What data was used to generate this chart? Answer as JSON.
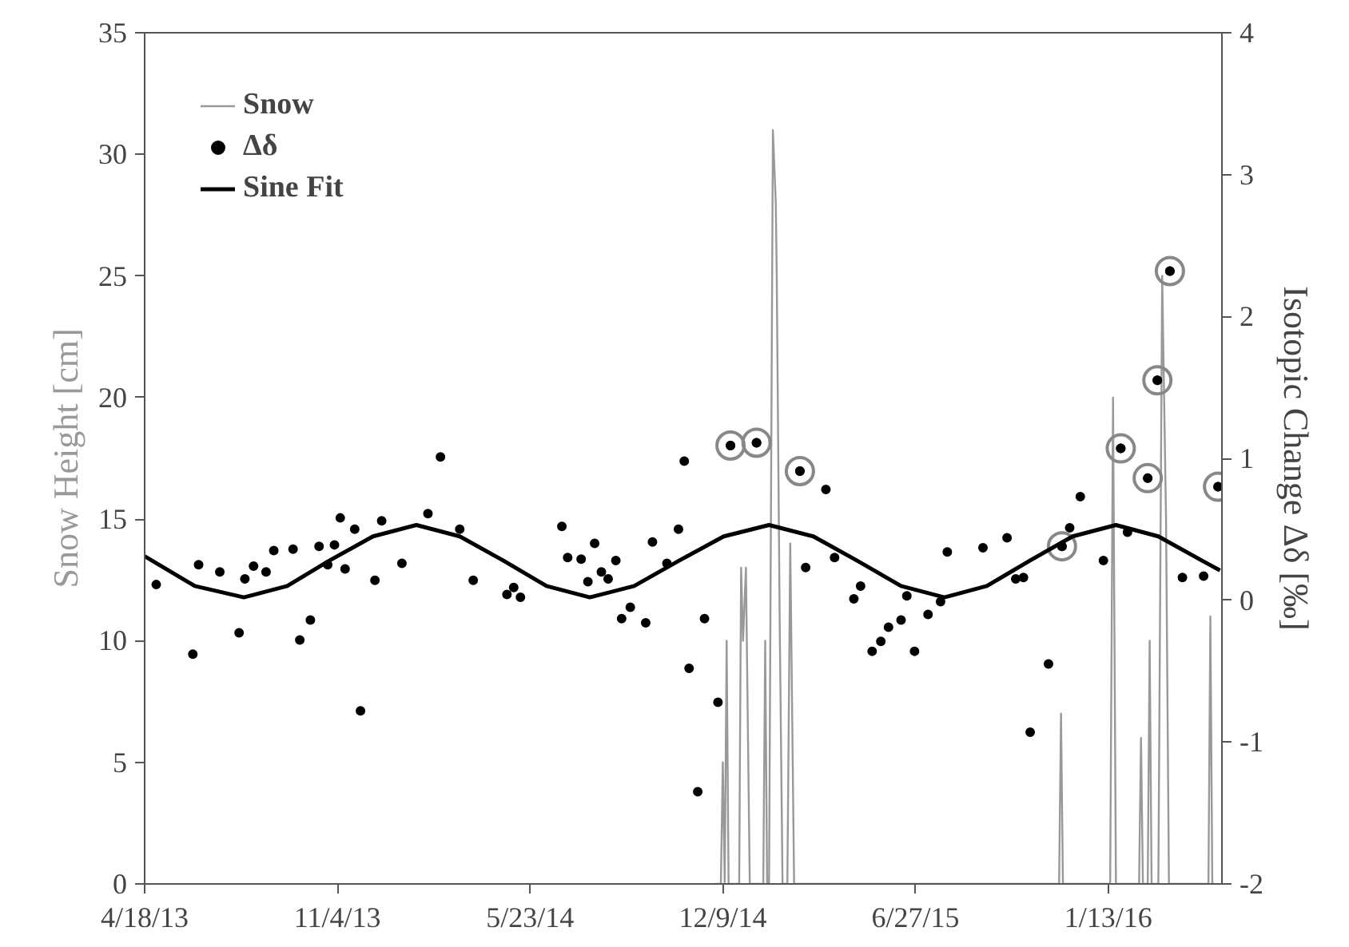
{
  "chart_data": {
    "type": "line",
    "ylabel": "Snow Height [cm]",
    "y2label": "Isotopic Change Δδ [‰]",
    "xlim": [
      "2013-04-18",
      "2016-05-10"
    ],
    "xticks": [
      {
        "value": "2013-04-18",
        "label": "4/18/13"
      },
      {
        "value": "2013-11-04",
        "label": "11/4/13"
      },
      {
        "value": "2014-05-23",
        "label": "5/23/14"
      },
      {
        "value": "2014-12-09",
        "label": "12/9/14"
      },
      {
        "value": "2015-06-27",
        "label": "6/27/15"
      },
      {
        "value": "2016-01-13",
        "label": "1/13/16"
      }
    ],
    "ylim": [
      0,
      35
    ],
    "yticks": [
      0,
      5,
      10,
      15,
      20,
      25,
      30,
      35
    ],
    "y2lim": [
      -2,
      4
    ],
    "y2ticks": [
      -2,
      -1,
      0,
      1,
      2,
      3,
      4
    ],
    "grid": false,
    "legend": "top left",
    "series": [
      {
        "name": "Snow",
        "type": "line",
        "color": "#999999",
        "x": [
          "2014-11-30",
          "2014-12-07",
          "2014-12-09",
          "2014-12-11",
          "2014-12-13",
          "2014-12-15",
          "2014-12-26",
          "2014-12-28",
          "2014-12-30",
          "2015-01-02",
          "2015-01-06",
          "2015-01-20",
          "2015-01-22",
          "2015-01-24",
          "2015-01-26",
          "2015-01-30",
          "2015-02-02",
          "2015-02-03",
          "2015-02-06",
          "2015-02-09",
          "2015-02-14",
          "2015-02-17",
          "2015-02-21",
          "2015-11-23",
          "2015-11-25",
          "2015-11-27",
          "2016-01-15",
          "2016-01-18",
          "2016-01-21",
          "2016-02-14",
          "2016-02-16",
          "2016-02-18",
          "2016-02-23",
          "2016-02-25",
          "2016-02-27",
          "2016-03-05",
          "2016-03-09",
          "2016-03-13",
          "2016-03-16",
          "2016-04-26",
          "2016-04-28",
          "2016-04-30",
          "2016-05-02"
        ],
        "values": [
          0,
          0,
          5,
          0,
          10,
          0,
          0,
          13,
          10,
          13,
          0,
          0,
          10,
          0,
          0,
          31,
          28,
          25,
          11,
          0,
          0,
          14,
          0,
          0,
          7,
          0,
          0,
          20,
          0,
          0,
          6,
          0,
          0,
          10,
          0,
          0,
          25,
          15,
          0,
          0,
          11,
          0,
          0
        ]
      },
      {
        "name": "Δδ",
        "type": "scatter",
        "axis": "y2",
        "marker": "circle",
        "color": "#000000",
        "x": [
          "2013-04-30",
          "2013-06-07",
          "2013-06-13",
          "2013-07-05",
          "2013-07-25",
          "2013-07-31",
          "2013-08-09",
          "2013-08-22",
          "2013-08-30",
          "2013-09-19",
          "2013-09-26",
          "2013-10-07",
          "2013-10-16",
          "2013-10-25",
          "2013-11-01",
          "2013-11-07",
          "2013-11-12",
          "2013-11-22",
          "2013-11-28",
          "2013-12-13",
          "2013-12-20",
          "2014-01-10",
          "2014-02-06",
          "2014-02-19",
          "2014-03-11",
          "2014-03-25",
          "2014-04-29",
          "2014-05-06",
          "2014-05-13",
          "2014-06-25",
          "2014-07-01",
          "2014-07-15",
          "2014-07-22",
          "2014-07-29",
          "2014-08-05",
          "2014-08-12",
          "2014-08-20",
          "2014-08-26",
          "2014-09-04",
          "2014-09-20",
          "2014-09-27",
          "2014-10-12",
          "2014-10-24",
          "2014-10-30",
          "2014-11-04",
          "2014-11-13",
          "2014-11-20",
          "2014-12-04",
          "2014-12-17",
          "2015-01-13",
          "2015-02-27",
          "2015-03-05",
          "2015-03-26",
          "2015-04-04",
          "2015-04-24",
          "2015-05-01",
          "2015-05-13",
          "2015-05-22",
          "2015-05-30",
          "2015-06-12",
          "2015-06-18",
          "2015-06-26",
          "2015-07-10",
          "2015-07-23",
          "2015-07-30",
          "2015-09-05",
          "2015-09-30",
          "2015-10-09",
          "2015-10-17",
          "2015-10-24",
          "2015-11-12",
          "2015-11-26",
          "2015-12-04",
          "2015-12-15",
          "2016-01-08",
          "2016-01-26",
          "2016-02-02",
          "2016-02-23",
          "2016-03-04",
          "2016-03-17",
          "2016-03-30",
          "2016-04-21",
          "2016-05-06"
        ],
        "values": [
          0.11,
          -0.38,
          0.25,
          0.2,
          -0.23,
          0.15,
          0.24,
          0.2,
          0.35,
          0.36,
          -0.28,
          -0.14,
          0.38,
          0.25,
          0.39,
          0.58,
          0.22,
          0.5,
          -0.78,
          0.14,
          0.56,
          0.26,
          0.61,
          1.01,
          0.5,
          0.14,
          0.04,
          0.09,
          0.02,
          0.52,
          0.3,
          0.29,
          0.13,
          0.4,
          0.2,
          0.15,
          0.28,
          -0.13,
          -0.05,
          -0.16,
          0.41,
          0.26,
          0.5,
          0.98,
          -0.48,
          -1.35,
          -0.13,
          -0.72,
          1.09,
          1.11,
          0.91,
          0.23,
          0.78,
          0.3,
          0.01,
          0.1,
          -0.36,
          -0.29,
          -0.19,
          -0.14,
          0.03,
          -0.36,
          -0.1,
          -0.01,
          0.34,
          0.37,
          0.44,
          0.15,
          0.16,
          -0.93,
          -0.45,
          0.38,
          0.51,
          0.73,
          0.28,
          1.07,
          0.48,
          0.86,
          1.55,
          2.32,
          0.16,
          0.17,
          0.8
        ]
      },
      {
        "type": "scatter",
        "axis": "y2",
        "marker": "circle",
        "color": "#888888",
        "x": [
          "2014-12-17",
          "2015-01-13",
          "2015-02-27",
          "2015-11-26",
          "2016-01-26",
          "2016-02-23",
          "2016-03-04",
          "2016-03-17",
          "2016-05-06"
        ],
        "values": [
          1.09,
          1.11,
          0.91,
          0.38,
          1.07,
          0.86,
          1.55,
          2.32,
          0.8
        ]
      },
      {
        "name": "Sine Fit",
        "axis": "y2",
        "color": "#000000",
        "x": [
          "2013-04-18",
          "2013-06-09",
          "2013-07-30",
          "2013-09-13",
          "2013-10-27",
          "2013-12-11",
          "2014-01-25",
          "2014-03-11",
          "2014-04-25",
          "2014-06-09",
          "2014-07-24",
          "2014-09-08",
          "2014-10-25",
          "2014-12-10",
          "2015-01-26",
          "2015-03-13",
          "2015-04-27",
          "2015-06-12",
          "2015-07-27",
          "2015-09-09",
          "2015-10-24",
          "2015-12-07",
          "2016-01-21",
          "2016-03-05",
          "2016-04-19",
          "2016-05-08"
        ],
        "values": [
          0.31,
          0.1,
          0.02,
          0.1,
          0.28,
          0.45,
          0.53,
          0.45,
          0.28,
          0.1,
          0.02,
          0.1,
          0.28,
          0.45,
          0.53,
          0.45,
          0.28,
          0.1,
          0.02,
          0.1,
          0.28,
          0.45,
          0.53,
          0.45,
          0.28,
          0.21
        ]
      }
    ]
  }
}
